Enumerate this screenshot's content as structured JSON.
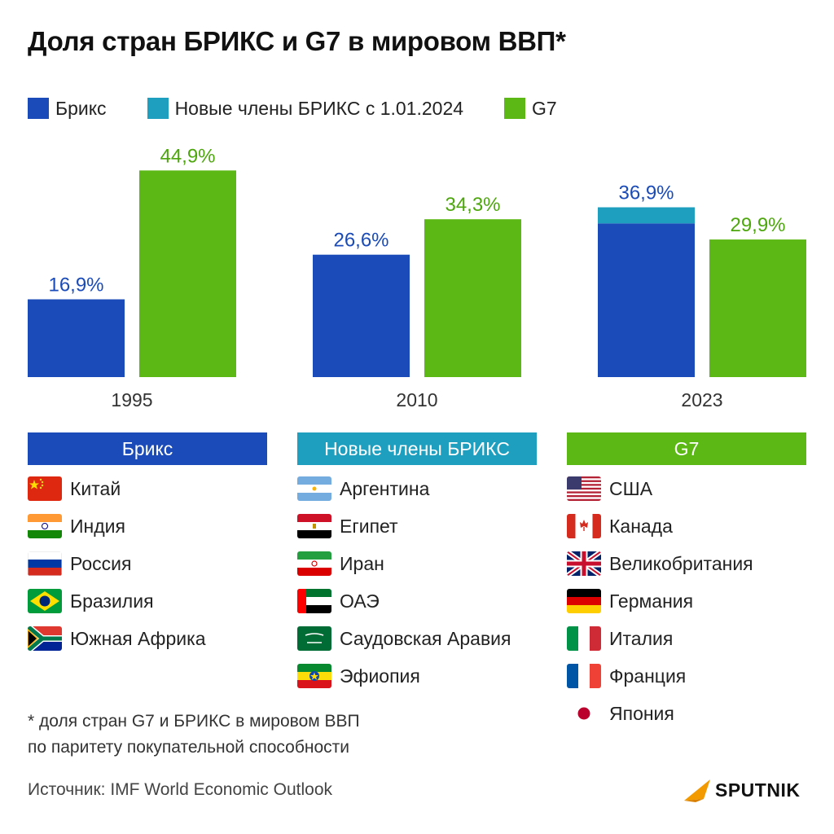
{
  "title": "Доля стран БРИКС и G7 в мировом ВВП*",
  "legend": [
    {
      "label": "Брикс",
      "color": "#1a4bb8"
    },
    {
      "label": "Новые члены БРИКС с 1.01.2024",
      "color": "#1e9fbf"
    },
    {
      "label": "G7",
      "color": "#5cb814"
    }
  ],
  "chart_data": {
    "type": "bar",
    "title": "Доля стран БРИКС и G7 в мировом ВВП*",
    "categories": [
      "1995",
      "2010",
      "2023"
    ],
    "ylim": [
      0,
      50
    ],
    "series": [
      {
        "name": "Брикс",
        "values": [
          16.9,
          26.6,
          33.4
        ],
        "color": "#1a4bb8"
      },
      {
        "name": "Новые члены БРИКС с 1.01.2024",
        "values": [
          0,
          0,
          3.5
        ],
        "color": "#1e9fbf"
      },
      {
        "name": "G7",
        "values": [
          44.9,
          34.3,
          29.9
        ],
        "color": "#5cb814"
      }
    ],
    "data_labels": [
      {
        "category": "1995",
        "brics": "16,9%",
        "g7": "44,9%"
      },
      {
        "category": "2010",
        "brics": "26,6%",
        "g7": "34,3%"
      },
      {
        "category": "2023",
        "brics": "36,9%",
        "g7": "29,9%"
      }
    ]
  },
  "groups": [
    {
      "header": "Брикс",
      "color": "#1a4bb8",
      "countries": [
        "Китай",
        "Индия",
        "Россия",
        "Бразилия",
        "Южная Африка"
      ],
      "flags": [
        "china-flag-icon",
        "india-flag-icon",
        "russia-flag-icon",
        "brazil-flag-icon",
        "south-africa-flag-icon"
      ]
    },
    {
      "header": "Новые члены БРИКС",
      "color": "#1e9fbf",
      "countries": [
        "Аргентина",
        "Египет",
        "Иран",
        "ОАЭ",
        "Саудовская Аравия",
        "Эфиопия"
      ],
      "flags": [
        "argentina-flag-icon",
        "egypt-flag-icon",
        "iran-flag-icon",
        "uae-flag-icon",
        "saudi-arabia-flag-icon",
        "ethiopia-flag-icon"
      ]
    },
    {
      "header": "G7",
      "color": "#5cb814",
      "countries": [
        "США",
        "Канада",
        "Великобритания",
        "Германия",
        "Италия",
        "Франция",
        "Япония"
      ],
      "flags": [
        "usa-flag-icon",
        "canada-flag-icon",
        "uk-flag-icon",
        "germany-flag-icon",
        "italy-flag-icon",
        "france-flag-icon",
        "japan-flag-icon"
      ]
    }
  ],
  "note": {
    "line1": "* доля стран G7 и БРИКС в мировом ВВП",
    "line2": "по паритету покупательной способности"
  },
  "source": "Источник: IMF World Economic Outlook",
  "logo": {
    "text": "SPUTNIK",
    "icon": "sputnik-logo-icon",
    "accent": "#f29a00"
  }
}
